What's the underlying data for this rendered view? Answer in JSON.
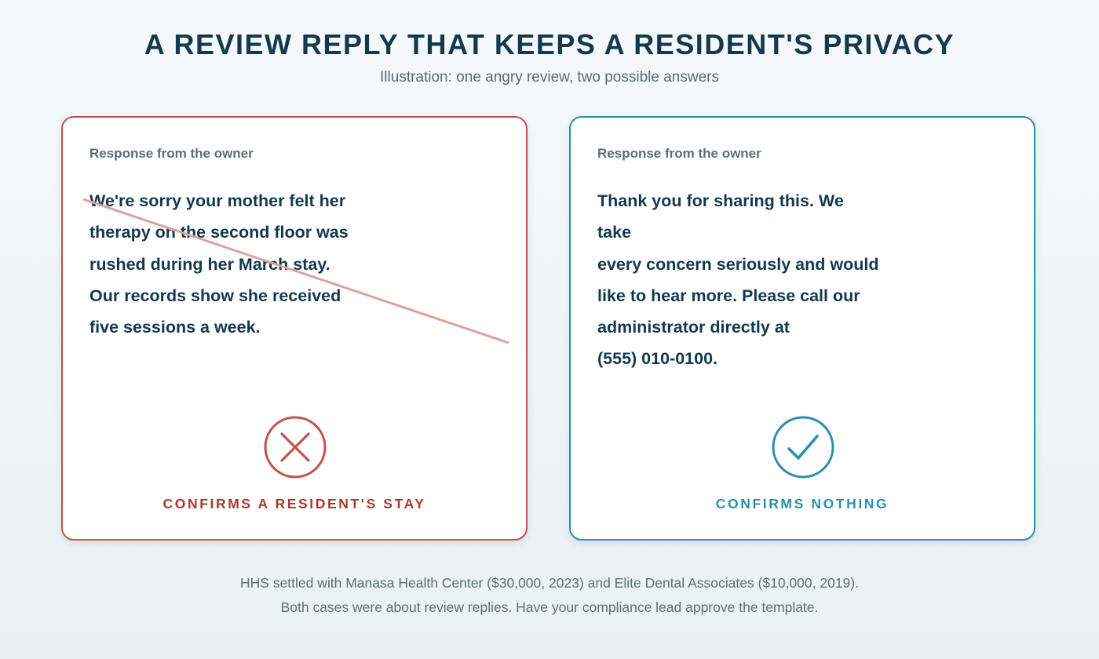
{
  "header": {
    "title": "A REVIEW REPLY THAT KEEPS A RESIDENT'S PRIVACY",
    "subtitle": "Illustration: one angry review, two possible answers"
  },
  "cards": [
    {
      "label": "Response from the owner",
      "lines": [
        "We're sorry your mother felt her",
        "therapy on the second floor was",
        "rushed during her March stay.",
        "Our records show she received",
        "five sessions a week."
      ],
      "verdict": "CONFIRMS A RESIDENT'S STAY",
      "icon": "x-circle-icon",
      "status": "bad",
      "color": "#c0544a"
    },
    {
      "label": "Response from the owner",
      "lines": [
        "Thank you for sharing this. We take",
        "every concern seriously and would",
        "like to hear more. Please call our",
        "administrator directly at",
        "(555) 010-0100."
      ],
      "verdict": "CONFIRMS NOTHING",
      "icon": "check-circle-icon",
      "status": "good",
      "color": "#2a8fac"
    }
  ],
  "footer": {
    "line1": "HHS settled with Manasa Health Center ($30,000, 2023) and Elite Dental Associates ($10,000, 2019).",
    "line2": "Both cases were about review replies. Have your compliance lead approve the template."
  }
}
